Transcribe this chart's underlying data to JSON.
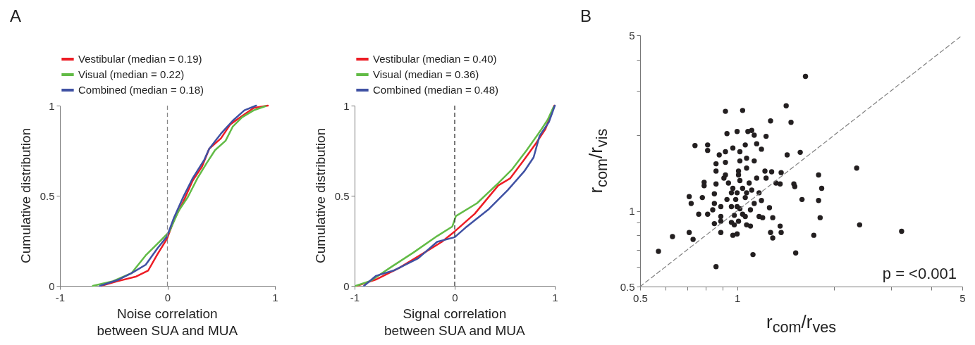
{
  "chart_data": [
    {
      "type": "line",
      "title": "A",
      "xlabel": "Noise correlation\nbetween SUA and MUA",
      "ylabel": "Cumulative distribution",
      "xlim": [
        -1,
        1
      ],
      "ylim": [
        0,
        1
      ],
      "xticks": [
        -1,
        0,
        1
      ],
      "yticks": [
        0,
        0.5,
        1
      ],
      "legend": "top",
      "line_style": "solid",
      "ref_lines": [
        {
          "axis": "x",
          "value": 0,
          "color": "#888888",
          "line_style": "dashed"
        }
      ],
      "series": [
        {
          "name": "Vestibular (median = 0.19)",
          "color": "#ed1c24",
          "x": [
            -0.617,
            -0.464,
            -0.29,
            -0.18,
            -0.093,
            -0.005,
            0.06,
            0.148,
            0.235,
            0.322,
            0.388,
            0.497,
            0.585,
            0.694,
            0.803,
            0.934
          ],
          "values": [
            0,
            0.026,
            0.052,
            0.084,
            0.175,
            0.26,
            0.364,
            0.468,
            0.584,
            0.662,
            0.76,
            0.818,
            0.896,
            0.942,
            0.987,
            1
          ]
        },
        {
          "name": "Visual (median = 0.22)",
          "color": "#62bb46",
          "x": [
            -0.694,
            -0.508,
            -0.333,
            -0.202,
            -0.071,
            0.016,
            0.104,
            0.191,
            0.279,
            0.366,
            0.443,
            0.541,
            0.607,
            0.694,
            0.803,
            0.913
          ],
          "values": [
            0,
            0.026,
            0.071,
            0.169,
            0.247,
            0.299,
            0.416,
            0.494,
            0.597,
            0.682,
            0.753,
            0.805,
            0.883,
            0.935,
            0.974,
            0.997
          ]
        },
        {
          "name": "Combined (median = 0.18)",
          "color": "#3f51a3",
          "x": [
            -0.628,
            -0.464,
            -0.333,
            -0.202,
            -0.093,
            -0.005,
            0.06,
            0.148,
            0.235,
            0.344,
            0.388,
            0.497,
            0.607,
            0.716,
            0.825
          ],
          "values": [
            0,
            0.032,
            0.071,
            0.117,
            0.208,
            0.273,
            0.377,
            0.494,
            0.597,
            0.701,
            0.76,
            0.844,
            0.916,
            0.974,
            1
          ]
        }
      ]
    },
    {
      "type": "line",
      "xlabel": "Signal correlation\nbetween SUA and MUA",
      "ylabel": "Cumulative distribution",
      "xlim": [
        -1,
        1
      ],
      "ylim": [
        0,
        1
      ],
      "xticks": [
        -1,
        0,
        1
      ],
      "yticks": [
        0,
        0.5,
        1
      ],
      "legend": "top",
      "line_style": "solid",
      "ref_lines": [
        {
          "axis": "x",
          "value": 0,
          "color": "#333333",
          "line_style": "dashed"
        }
      ],
      "series": [
        {
          "name": "Vestibular (median = 0.40)",
          "color": "#ed1c24",
          "x": [
            -0.976,
            -0.788,
            -0.553,
            -0.318,
            -0.129,
            0,
            0.2,
            0.435,
            0.553,
            0.694,
            0.812,
            0.906,
            0.995
          ],
          "values": [
            0,
            0.035,
            0.1,
            0.179,
            0.244,
            0.302,
            0.4,
            0.557,
            0.596,
            0.7,
            0.791,
            0.87,
            1
          ]
        },
        {
          "name": "Visual (median = 0.36)",
          "color": "#62bb46",
          "x": [
            -0.988,
            -0.835,
            -0.647,
            -0.412,
            -0.176,
            -0.024,
            0.012,
            0.224,
            0.435,
            0.576,
            0.718,
            0.859,
            0.929,
            0.988
          ],
          "values": [
            0,
            0.029,
            0.1,
            0.185,
            0.276,
            0.329,
            0.387,
            0.459,
            0.57,
            0.648,
            0.752,
            0.863,
            0.922,
            0.993
          ]
        },
        {
          "name": "Combined (median = 0.48)",
          "color": "#3f51a3",
          "x": [
            -0.906,
            -0.788,
            -0.6,
            -0.365,
            -0.176,
            0,
            0.106,
            0.341,
            0.529,
            0.694,
            0.788,
            0.847,
            0.941,
            1
          ],
          "values": [
            0,
            0.055,
            0.087,
            0.153,
            0.244,
            0.27,
            0.322,
            0.426,
            0.531,
            0.635,
            0.713,
            0.831,
            0.909,
            1
          ]
        }
      ]
    },
    {
      "type": "scatter",
      "title": "B",
      "xlabel": "r$_{com}$/r$_{ves}$",
      "ylabel": "r$_{com}$/r$_{vis}$",
      "log": "xy",
      "xlim": [
        0.5,
        5
      ],
      "ylim": [
        0.5,
        5
      ],
      "xticks": [
        0.5,
        {
          "value": 0.6,
          "label": null
        },
        {
          "value": 0.7,
          "label": null
        },
        {
          "value": 0.8,
          "label": null
        },
        {
          "value": 0.9,
          "label": null
        },
        1,
        {
          "value": 2,
          "label": null
        },
        {
          "value": 3,
          "label": null
        },
        {
          "value": 4,
          "label": null
        },
        5
      ],
      "yticks": [
        0.5,
        {
          "value": 0.6,
          "label": null
        },
        {
          "value": 0.7,
          "label": null
        },
        {
          "value": 0.8,
          "label": null
        },
        {
          "value": 0.9,
          "label": null
        },
        1,
        {
          "value": 2,
          "label": null
        },
        {
          "value": 3,
          "label": null
        },
        {
          "value": 4,
          "label": null
        },
        5
      ],
      "annotations": [
        "p = <0.001"
      ],
      "series": [
        {
          "color": "#231f20",
          "marker": "circle",
          "x": [
            1.63,
            1.42,
            0.92,
            1.04,
            1.27,
            1.47,
            0.93,
            1.0,
            1.08,
            1.11,
            1.13,
            1.23,
            0.74,
            0.81,
            0.81,
            1.15,
            1.19,
            1.43,
            1.57,
            0.88,
            0.92,
            0.97,
            1.02,
            1.06,
            1.02,
            1.07,
            1.13,
            0.92,
            0.86,
            1.07,
            2.35,
            1.79,
            1.83,
            1.59,
            1.79,
            1.81,
            2.4,
            3.24,
            1.73,
            1.52,
            1.12,
            0.86,
            0.57,
            0.63,
            0.71,
            0.73,
            0.71,
            0.72,
            0.78,
            0.76,
            0.81,
            0.84,
            0.85,
            0.85,
            0.79,
            0.79,
            0.86,
            0.86,
            0.91,
            0.94,
            0.97,
            1.0,
            1.02,
            0.99,
            0.96,
            1.02,
            1.04,
            0.98,
            0.89,
            0.89,
            0.85,
            0.89,
            0.96,
            0.98,
            1.01,
            1.06,
            1.07,
            1.1,
            1.1,
            1.13,
            1.19,
            1.17,
            1.11,
            1.09,
            1.15,
            1.22,
            1.28,
            1.37,
            1.23,
            1.32,
            1.36,
            1.5,
            1.51,
            1.26,
            1.29,
            1.17,
            1.2,
            1.36,
            1.37,
            1.27,
            1.29,
            0.89,
            0.97,
            1.0,
            1.01,
            1.01,
            0.92,
            1.06,
            1.07,
            0.96,
            0.93,
            1.04,
            1.0
          ],
          "values": [
            3.43,
            2.62,
            2.49,
            2.51,
            2.28,
            2.25,
            2.03,
            2.07,
            2.07,
            2.09,
            2.0,
            1.98,
            1.82,
            1.83,
            1.74,
            1.85,
            1.76,
            1.67,
            1.71,
            1.67,
            1.72,
            1.78,
            1.72,
            1.83,
            1.58,
            1.62,
            1.58,
            1.56,
            1.54,
            1.48,
            1.48,
            1.39,
            1.23,
            1.11,
            1.1,
            0.94,
            0.88,
            0.83,
            0.8,
            0.68,
            0.67,
            0.6,
            0.69,
            0.79,
            0.82,
            0.77,
            1.14,
            1.07,
            1.13,
            0.97,
            0.97,
            1.01,
            1.07,
            1.17,
            1.3,
            1.26,
            1.28,
            1.44,
            1.35,
            1.29,
            1.23,
            1.18,
            1.32,
            1.11,
            1.04,
            1.02,
            0.97,
            0.96,
            1.04,
            0.95,
            0.89,
            0.91,
            0.9,
            0.88,
            0.91,
            0.95,
            0.88,
            0.87,
            1.01,
            1.07,
            1.1,
            1.18,
            1.21,
            1.29,
            1.35,
            1.44,
            1.43,
            1.42,
            1.35,
            1.29,
            1.28,
            1.28,
            1.25,
            1.03,
            0.94,
            0.95,
            0.94,
            0.87,
            0.82,
            0.82,
            0.78,
            0.82,
            0.8,
            0.81,
            1.44,
            1.39,
            1.39,
            1.13,
            1.18,
            1.18,
            1.11,
            1.23,
            1.04
          ]
        },
        {
          "type": "line",
          "color": "#808080",
          "line_style": "dashed",
          "x": [
            0.5,
            5
          ],
          "values": [
            0.5,
            5
          ]
        }
      ]
    }
  ]
}
